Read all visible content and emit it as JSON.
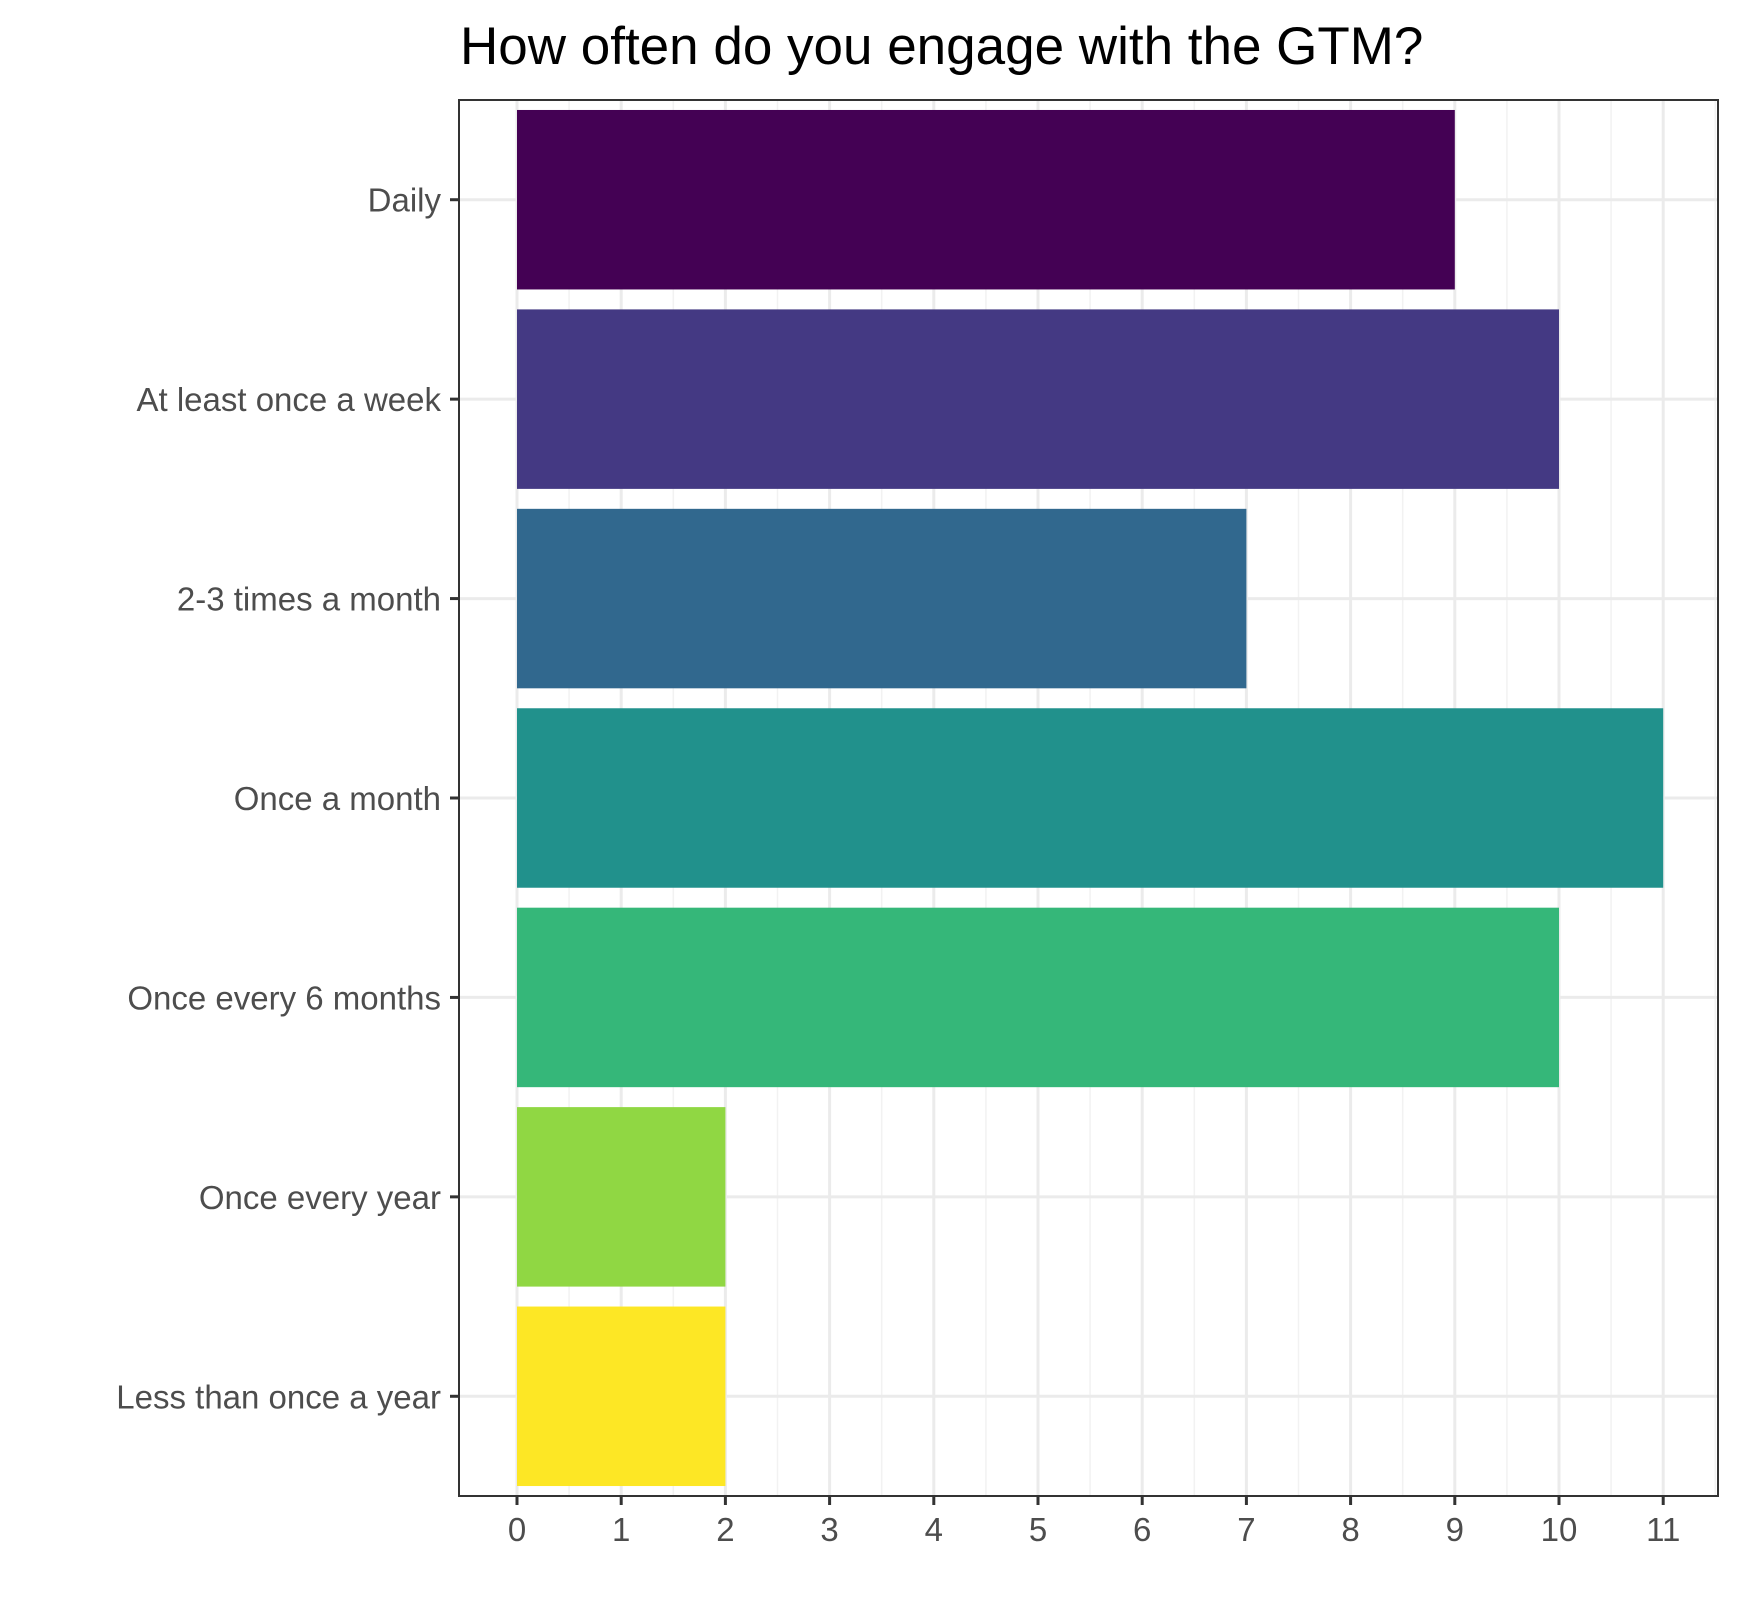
{
  "chart_data": {
    "type": "bar",
    "orientation": "horizontal",
    "title": "How often do you engage with the GTM?",
    "xlabel": "",
    "ylabel": "",
    "categories": [
      "Daily",
      "At least once a week",
      "2-3 times a month",
      "Once a month",
      "Once every 6 months",
      "Once every year",
      "Less than once a year"
    ],
    "values": [
      9,
      10,
      7,
      11,
      10,
      2,
      2
    ],
    "colors": [
      "#440154",
      "#443983",
      "#31688E",
      "#21918C",
      "#35B779",
      "#90D743",
      "#FDE725"
    ],
    "xlim": [
      0,
      11
    ],
    "x_ticks": [
      "0",
      "1",
      "2",
      "3",
      "4",
      "5",
      "6",
      "7",
      "8",
      "9",
      "10",
      "11"
    ],
    "grid": true,
    "legend": "none"
  }
}
